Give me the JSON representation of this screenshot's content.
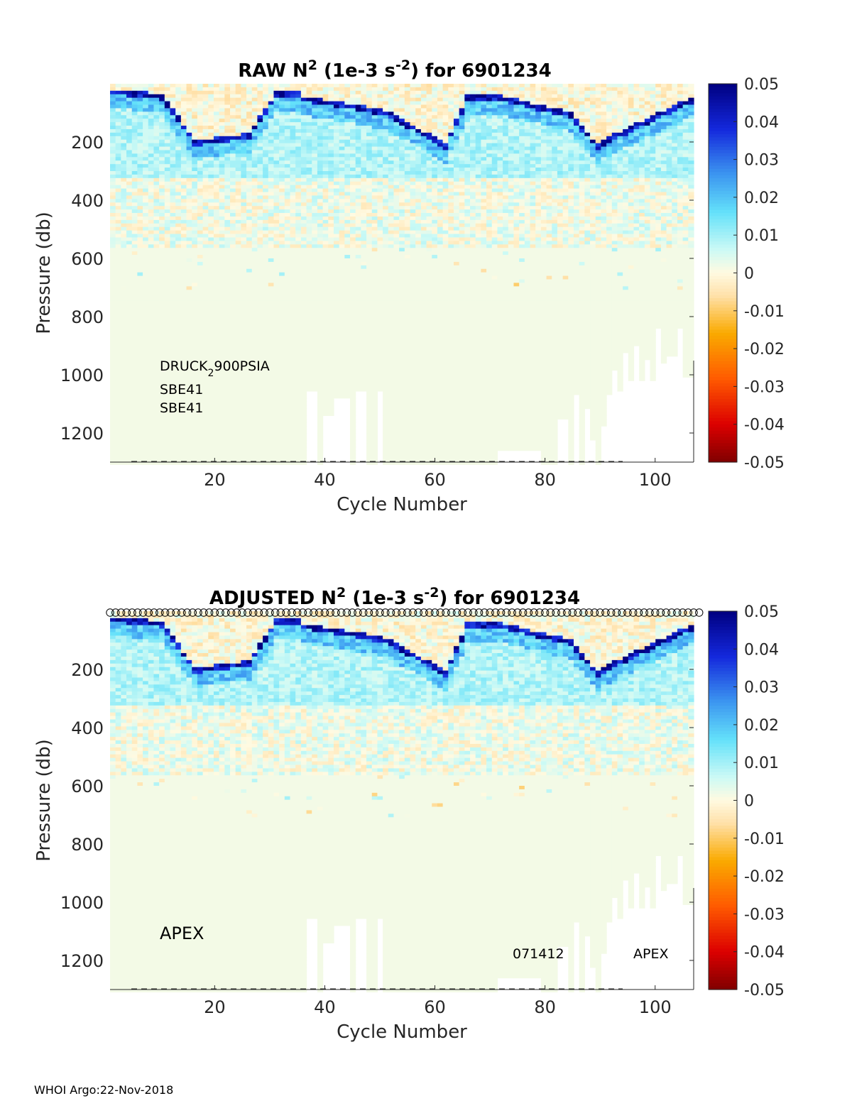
{
  "footer": "WHOI Argo:22-Nov-2018",
  "colorbar": {
    "ticks": [
      "0.05",
      "0.04",
      "0.03",
      "0.02",
      "0.01",
      "0",
      "-0.01",
      "-0.02",
      "-0.03",
      "-0.04",
      "-0.05"
    ],
    "range": [
      -0.05,
      0.05
    ]
  },
  "chart_data": [
    {
      "type": "heatmap",
      "title": {
        "prefix": "RAW N",
        "sup1": "2",
        "mid": " (1e-3 s",
        "sup2": "-2",
        "suffix": ") for 6901234"
      },
      "xlabel": "Cycle Number",
      "ylabel": "Pressure (db)",
      "xlim": [
        1,
        107
      ],
      "ylim": [
        0,
        1300
      ],
      "y_reversed": true,
      "xticks": [
        "20",
        "40",
        "60",
        "80",
        "100"
      ],
      "yticks": [
        "200",
        "400",
        "600",
        "800",
        "1000",
        "1200"
      ],
      "clim": [
        -0.05,
        0.05
      ],
      "annotations": [
        "DRUCK",
        "2",
        "900PSIA",
        "SBE41",
        "SBE41"
      ],
      "profile_max_pressure_pattern": "profiles mostly reach ~1300 db; shallower profiles (900-1100 db) after cycle ~95 and near cycles 37-50",
      "show_qc_markers": false
    },
    {
      "type": "heatmap",
      "title": {
        "prefix": "ADJUSTED N",
        "sup1": "2",
        "mid": " (1e-3 s",
        "sup2": "-2",
        "suffix": ") for 6901234"
      },
      "xlabel": "Cycle Number",
      "ylabel": "Pressure (db)",
      "xlim": [
        1,
        107
      ],
      "ylim": [
        0,
        1300
      ],
      "y_reversed": true,
      "xticks": [
        "20",
        "40",
        "60",
        "80",
        "100"
      ],
      "yticks": [
        "200",
        "400",
        "600",
        "800",
        "1000",
        "1200"
      ],
      "clim": [
        -0.05,
        0.05
      ],
      "annotations": [
        "APEX",
        "071412",
        "APEX"
      ],
      "show_qc_markers": true
    }
  ]
}
